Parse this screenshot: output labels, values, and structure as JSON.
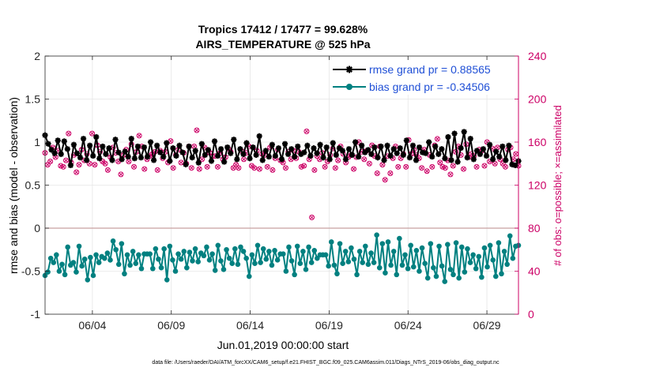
{
  "chart_data": {
    "type": "line",
    "title_line1": "Tropics 17412 / 17477 = 99.628%",
    "title_line2": "AIRS_TEMPERATURE @ 525 hPa",
    "xlabel": "Jun.01,2019 00:00:00 start",
    "ylabel_left": "rmse and bias (model - observation)",
    "ylabel_right": "# of obs: o=possible; ×=assimilated",
    "footer": "data file: /Users/raeder/DAI/ATM_forcXX/CAM6_setup/f.e21.FHIST_BGC.f09_025.CAM6assim.011/Diags_NTrS_2019-06/obs_diag_output.nc",
    "xlim": [
      1.0,
      31.0
    ],
    "ylim_left": [
      -1,
      2
    ],
    "ylim_right": [
      0,
      240
    ],
    "xticks": [
      {
        "x": 4,
        "label": "06/04"
      },
      {
        "x": 9,
        "label": "06/09"
      },
      {
        "x": 14,
        "label": "06/14"
      },
      {
        "x": 19,
        "label": "06/19"
      },
      {
        "x": 24,
        "label": "06/24"
      },
      {
        "x": 29,
        "label": "06/29"
      }
    ],
    "yticks_left": [
      -1,
      -0.5,
      0,
      0.5,
      1,
      1.5,
      2
    ],
    "yticks_left_labels": [
      "-1",
      "-0.5",
      "0",
      "0.5",
      "1",
      "1.5",
      "2"
    ],
    "yticks_right": [
      0,
      40,
      80,
      120,
      160,
      200,
      240
    ],
    "yticks_right_labels": [
      "0",
      "40",
      "80",
      "120",
      "160",
      "200",
      "240"
    ],
    "grid": true,
    "legend_position": "top-right",
    "colors": {
      "rmse": "#000000",
      "bias": "#008080",
      "obs": "#cc0066",
      "legend_text": "#1f4fd6",
      "zero_line": "#c8a0a0"
    },
    "series": [
      {
        "name": "rmse grand pr = 0.88565",
        "axis": "left",
        "values": [
          1.08,
          0.98,
          0.91,
          0.87,
          1.02,
          0.86,
          1.01,
          0.92,
          0.73,
          0.97,
          0.87,
          0.82,
          1.04,
          0.79,
          0.96,
          0.84,
          1.06,
          0.81,
          0.95,
          0.86,
          0.93,
          0.79,
          1.03,
          0.88,
          0.8,
          0.89,
          0.83,
          1.04,
          0.81,
          0.95,
          0.82,
          0.94,
          0.83,
          1.0,
          0.79,
          0.96,
          0.88,
          0.83,
          0.99,
          0.78,
          0.93,
          0.84,
          0.96,
          0.88,
          0.74,
          0.95,
          0.82,
          0.9,
          0.76,
          0.98,
          0.85,
          0.91,
          0.78,
          1.01,
          0.84,
          0.92,
          0.77,
          0.94,
          0.87,
          1.03,
          0.8,
          0.92,
          0.86,
          0.99,
          0.81,
          0.94,
          0.85,
          1.07,
          0.79,
          0.9,
          0.83,
          0.97,
          0.84,
          0.93,
          0.8,
          0.98,
          0.86,
          0.92,
          0.83,
          0.95,
          0.86,
          0.88,
          0.96,
          0.84,
          0.93,
          0.87,
          0.97,
          0.82,
          0.94,
          0.8,
          0.99,
          0.85,
          0.93,
          0.9,
          0.8,
          0.92,
          0.85,
          1.0,
          0.83,
          0.96,
          0.88,
          0.91,
          0.86,
          0.94,
          0.82,
          0.95,
          0.79,
          0.96,
          0.84,
          0.92,
          0.87,
          0.93,
          0.85,
          1.02,
          0.82,
          0.96,
          0.79,
          0.94,
          0.88,
          0.87,
          1.0,
          0.83,
          0.95,
          0.86,
          0.92,
          0.81,
          1.06,
          0.79,
          1.1,
          0.77,
          0.93,
          1.12,
          0.82,
          1.04,
          0.8,
          0.9,
          0.86,
          0.92,
          0.84,
          0.97,
          0.8,
          0.89,
          0.83,
          0.95,
          0.79,
          0.96,
          0.74,
          0.73,
          0.78
        ]
      },
      {
        "name": "bias grand pr = -0.34506",
        "axis": "left",
        "values": [
          -0.55,
          -0.51,
          -0.35,
          -0.4,
          -0.31,
          -0.5,
          -0.42,
          -0.54,
          -0.22,
          -0.43,
          -0.4,
          -0.51,
          -0.21,
          -0.44,
          -0.36,
          -0.6,
          -0.34,
          -0.55,
          -0.31,
          -0.4,
          -0.33,
          -0.35,
          -0.29,
          -0.37,
          -0.15,
          -0.25,
          -0.42,
          -0.18,
          -0.53,
          -0.31,
          -0.43,
          -0.27,
          -0.41,
          -0.31,
          -0.47,
          -0.3,
          -0.3,
          -0.3,
          -0.47,
          -0.24,
          -0.36,
          -0.46,
          -0.24,
          -0.6,
          -0.21,
          -0.37,
          -0.5,
          -0.3,
          -0.36,
          -0.27,
          -0.46,
          -0.28,
          -0.38,
          -0.24,
          -0.39,
          -0.29,
          -0.32,
          -0.22,
          -0.37,
          -0.3,
          -0.49,
          -0.2,
          -0.38,
          -0.48,
          -0.25,
          -0.35,
          -0.41,
          -0.24,
          -0.42,
          -0.22,
          -0.27,
          -0.35,
          -0.56,
          -0.31,
          -0.41,
          -0.2,
          -0.4,
          -0.24,
          -0.36,
          -0.27,
          -0.43,
          -0.26,
          -0.37,
          -0.3,
          -0.3,
          -0.5,
          -0.22,
          -0.38,
          -0.54,
          -0.21,
          -0.41,
          -0.27,
          -0.48,
          -0.22,
          -0.4,
          -0.26,
          -0.35,
          -0.31,
          -0.31,
          -0.31,
          -0.44,
          -0.16,
          -0.43,
          -0.53,
          -0.18,
          -0.41,
          -0.27,
          -0.39,
          -0.23,
          -0.36,
          -0.54,
          -0.27,
          -0.4,
          -0.21,
          -0.42,
          -0.29,
          -0.4,
          -0.08,
          -0.46,
          -0.18,
          -0.52,
          -0.16,
          -0.43,
          -0.27,
          -0.54,
          -0.12,
          -0.43,
          -0.31,
          -0.47,
          -0.2,
          -0.45,
          -0.26,
          -0.5,
          -0.23,
          -0.41,
          -0.58,
          -0.18,
          -0.46,
          -0.56,
          -0.21,
          -0.44,
          -0.62,
          -0.19,
          -0.48,
          -0.54,
          -0.17,
          -0.58,
          -0.22,
          -0.51,
          -0.24,
          -0.4,
          -0.31,
          -0.47,
          -0.33,
          -0.57,
          -0.23,
          -0.45,
          -0.2,
          -0.37,
          -0.56,
          -0.17,
          -0.53,
          -0.27,
          -0.42,
          -0.09,
          -0.35,
          -0.21,
          -0.2
        ]
      },
      {
        "name": "# of obs (possible / assimilated)",
        "axis": "right",
        "values": [
          150,
          139,
          142,
          155,
          146,
          152,
          138,
          137,
          143,
          168,
          141,
          148,
          132,
          139,
          153,
          143,
          149,
          140,
          168,
          139,
          157,
          151,
          142,
          140,
          134,
          146,
          155,
          150,
          142,
          130,
          148,
          153,
          142,
          158,
          137,
          151,
          166,
          156,
          135,
          144,
          147,
          149,
          151,
          134,
          152,
          145,
          151,
          141,
          161,
          136,
          148,
          153,
          141,
          150,
          140,
          156,
          136,
          156,
          171,
          135,
          144,
          155,
          137,
          150,
          147,
          147,
          137,
          150,
          144,
          146,
          154,
          151,
          136,
          139,
          136,
          152,
          144,
          150,
          156,
          138,
          136,
          152,
          135,
          149,
          148,
          137,
          155,
          134,
          145,
          153,
          143,
          141,
          136,
          151,
          144,
          152,
          145,
          151,
          137,
          138,
          170,
          144,
          90,
          134,
          147,
          144,
          150,
          137,
          142,
          148,
          154,
          136,
          143,
          156,
          149,
          141,
          146,
          148,
          135,
          146,
          160,
          151,
          144,
          152,
          140,
          157,
          147,
          131,
          156,
          139,
          125,
          147,
          131,
          145,
          156,
          137,
          145,
          149,
          137,
          162,
          149,
          153,
          148,
          145,
          136,
          153,
          133,
          148,
          137,
          157,
          163,
          141,
          137,
          136,
          143,
          130,
          138,
          151,
          156,
          148,
          135,
          158,
          146,
          149,
          147,
          137,
          153,
          152,
          138,
          160,
          142,
          154,
          140,
          155,
          144,
          140,
          137,
          153,
          155,
          144,
          149,
          138
        ]
      }
    ]
  }
}
